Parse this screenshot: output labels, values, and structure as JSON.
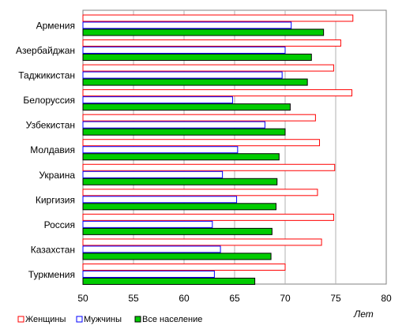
{
  "chart_data": {
    "type": "bar",
    "orientation": "horizontal",
    "categories": [
      "Армения",
      "Азербайджан",
      "Таджикистан",
      "Белоруссия",
      "Узбекистан",
      "Молдавия",
      "Украина",
      "Киргизия",
      "Россия",
      "Казахстан",
      "Туркмения"
    ],
    "series": [
      {
        "name": "Женщины",
        "color": "#ff0000",
        "fill": "#ffffff",
        "values": [
          76.7,
          75.5,
          74.8,
          76.6,
          73.0,
          73.4,
          74.9,
          73.2,
          74.8,
          73.6,
          70.0
        ]
      },
      {
        "name": "Мужчины",
        "color": "#0000ff",
        "fill": "#ffffff",
        "values": [
          70.6,
          70.0,
          69.7,
          64.8,
          68.0,
          65.3,
          63.8,
          65.2,
          62.8,
          63.6,
          63.0
        ]
      },
      {
        "name": "Все население",
        "color": "#00cc00",
        "stroke": "#000000",
        "values": [
          73.8,
          72.6,
          72.2,
          70.5,
          70.0,
          69.4,
          69.2,
          69.1,
          68.7,
          68.6,
          67.0
        ]
      }
    ],
    "x_ticks": [
      "50",
      "55",
      "60",
      "65",
      "70",
      "75",
      "80"
    ],
    "xlim": [
      50,
      80
    ],
    "xlabel": "Лет",
    "grid": "vertical",
    "legend": "bottom"
  }
}
